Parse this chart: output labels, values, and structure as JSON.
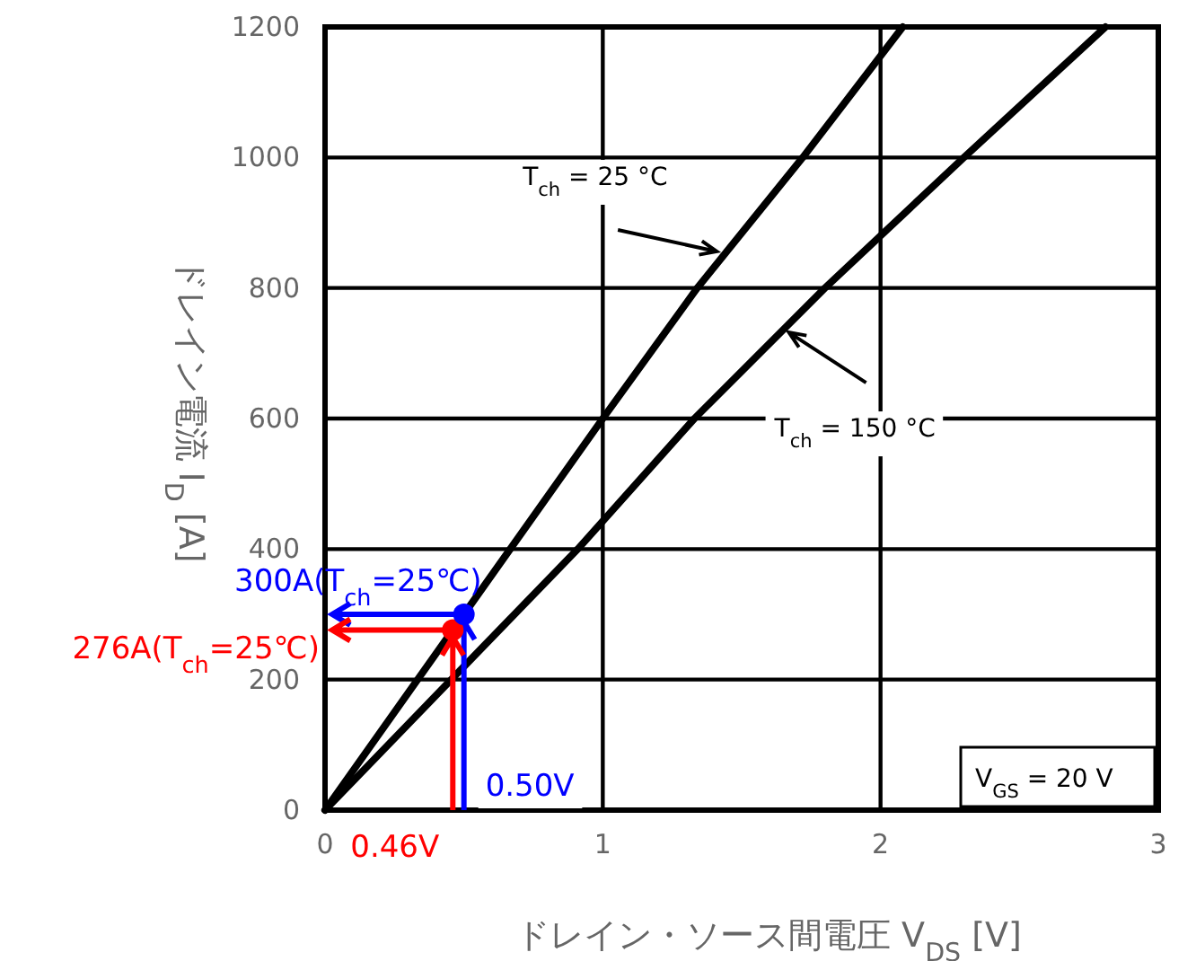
{
  "chart_data": {
    "type": "line",
    "xlabel": "ドレイン・ソース間電圧 V$_{DS}$ [V]",
    "ylabel": "ドレイン電流 I$_{D}$ [A]",
    "xlim": [
      0,
      3
    ],
    "xticks": [
      0,
      1,
      2,
      3
    ],
    "ylim": [
      0,
      1200
    ],
    "yticks": [
      0,
      200,
      400,
      600,
      800,
      1000,
      1200
    ],
    "grid": true,
    "series": [
      {
        "type": "line",
        "color": "#000000",
        "x": [
          0,
          1,
          1.34,
          1.72,
          2.08
        ],
        "values": [
          0,
          600,
          800,
          1000,
          1200
        ]
      },
      {
        "type": "line",
        "color": "#000000",
        "x": [
          0,
          0.5,
          0.91,
          1.33,
          1.8,
          2.3,
          2.81
        ],
        "values": [
          0,
          220,
          400,
          600,
          800,
          1000,
          1200
        ]
      },
      {
        "type": "scatter",
        "color": "#ff0000",
        "x": [
          0.46
        ],
        "values": [
          276
        ]
      },
      {
        "type": "scatter",
        "color": "#0000ff",
        "x": [
          0.5
        ],
        "values": [
          300
        ]
      }
    ],
    "annotations": [
      {
        "text": "T$_{ch}$ = 25 °C",
        "x": 1.41,
        "y": 856
      },
      {
        "text": "T$_{ch}$ = 150 °C",
        "x": 1.67,
        "y": 732
      },
      {
        "text": "300A(T$_{ch}$=25℃)",
        "x": 0.5,
        "y": 300
      },
      {
        "text": "276A(T$_{ch}$=25℃)",
        "x": 0.46,
        "y": 276
      },
      {
        "text": "0.50V",
        "x": 0.5,
        "y": 300
      },
      {
        "text": "0.46V",
        "x": 0.46,
        "y": 276
      },
      "V$_{GS}$ = 20 V"
    ]
  }
}
